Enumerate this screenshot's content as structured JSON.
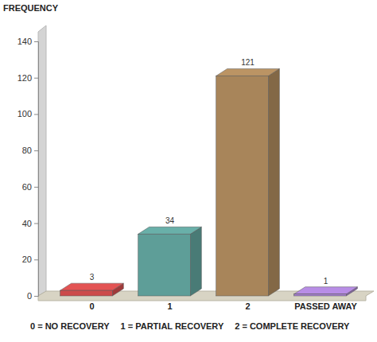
{
  "chart_data": {
    "type": "bar",
    "ylabel": "FREQUENCY",
    "categories": [
      "0",
      "1",
      "2",
      "PASSED AWAY"
    ],
    "values": [
      3,
      34,
      121,
      1
    ],
    "colors": [
      "#cc4b4b",
      "#5e9e98",
      "#a8855a",
      "#a57fcf"
    ],
    "ylim": [
      0,
      140
    ],
    "yticks": [
      0,
      20,
      40,
      60,
      80,
      100,
      120,
      140
    ],
    "data_labels": true,
    "annotations": [
      "0 = NO RECOVERY",
      "1 = PARTIAL RECOVERY",
      "2 = COMPLETE RECOVERY"
    ]
  }
}
